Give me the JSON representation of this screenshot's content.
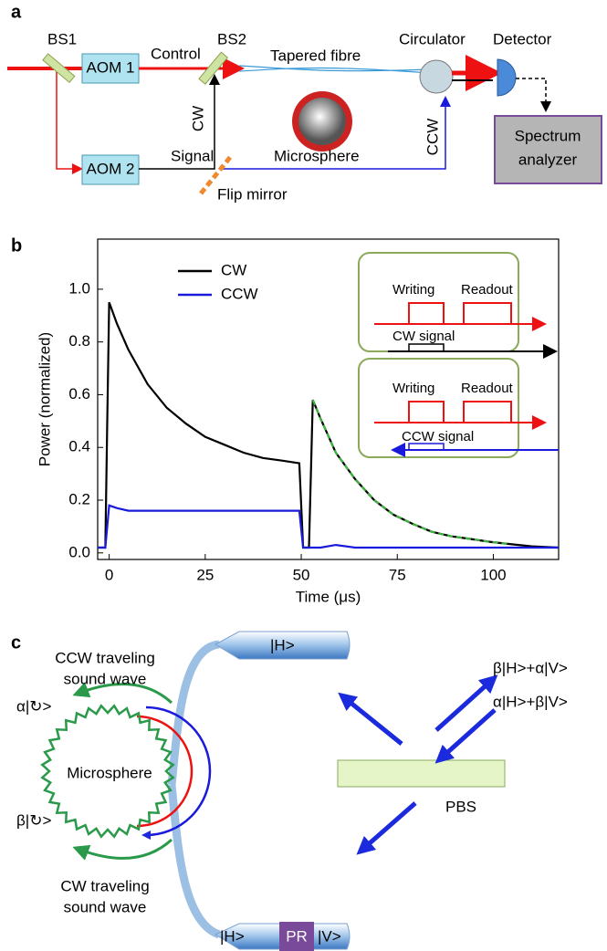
{
  "panel_a": {
    "label": "a",
    "texts": [
      "BS1",
      "AOM 1",
      "Control",
      "BS2",
      "Tapered fibre",
      "Circulator",
      "Detector",
      "CW",
      "AOM 2",
      "Signal",
      "Microsphere",
      "CCW",
      "Spectrum",
      "analyzer",
      "Flip mirror"
    ]
  },
  "chart_data": {
    "type": "line",
    "panel_label": "b",
    "xlabel": "Time (μs)",
    "ylabel": "Power (normalized)",
    "x": [
      -3,
      -1,
      -0.5,
      0,
      2,
      5,
      10,
      15,
      20,
      25,
      30,
      35,
      40,
      45,
      49.5,
      50.5,
      52,
      53,
      55,
      59,
      64,
      69,
      74,
      79,
      84,
      89,
      94,
      99,
      104,
      110,
      117
    ],
    "series": [
      {
        "name": "CW",
        "color": "#000000",
        "values": [
          0.02,
          0.02,
          0.5,
          0.95,
          0.87,
          0.77,
          0.64,
          0.55,
          0.49,
          0.44,
          0.41,
          0.38,
          0.36,
          0.35,
          0.34,
          0.02,
          0.02,
          0.58,
          0.51,
          0.38,
          0.28,
          0.2,
          0.145,
          0.11,
          0.08,
          0.063,
          0.053,
          0.042,
          0.034,
          0.025,
          0.02
        ]
      },
      {
        "name": "CCW",
        "color": "#1a1adc",
        "values": [
          0.02,
          0.02,
          0.1,
          0.18,
          0.17,
          0.16,
          0.16,
          0.16,
          0.16,
          0.16,
          0.16,
          0.16,
          0.16,
          0.16,
          0.16,
          0.02,
          0.02,
          0.02,
          0.02,
          0.03,
          0.02,
          0.02,
          0.02,
          0.02,
          0.02,
          0.02,
          0.02,
          0.02,
          0.02,
          0.02,
          0.02
        ]
      },
      {
        "color": "#3cb43c",
        "linestyle": "dashed",
        "values": [
          null,
          null,
          null,
          null,
          null,
          null,
          null,
          null,
          null,
          null,
          null,
          null,
          null,
          null,
          null,
          null,
          null,
          0.58,
          0.51,
          0.38,
          0.28,
          0.2,
          0.145,
          0.11,
          0.08,
          0.063,
          0.053,
          0.042,
          0.034,
          null,
          null
        ]
      }
    ],
    "xlim": [
      -3,
      117
    ],
    "xticks": [
      0,
      25,
      50,
      75,
      100
    ],
    "ylim": [
      -0.025,
      1.19
    ],
    "yticks": [
      {
        "value": 0,
        "label": "0.0"
      },
      0.2,
      0.4,
      0.6,
      0.8,
      {
        "value": 1,
        "label": "1.0"
      }
    ],
    "annotations": [
      "Writing",
      "Readout",
      "CW signal",
      "Writing",
      "Readout",
      "CCW signal"
    ]
  },
  "panel_c": {
    "label": "c",
    "texts": [
      "CCW traveling",
      "sound wave",
      "α|↻>",
      "Microsphere",
      "β|↻>",
      "CW traveling",
      "sound wave",
      "|H>",
      "β|H>+α|V>",
      "α|H>+β|V>",
      "PBS",
      "|H>",
      "PR",
      "|V>"
    ]
  }
}
